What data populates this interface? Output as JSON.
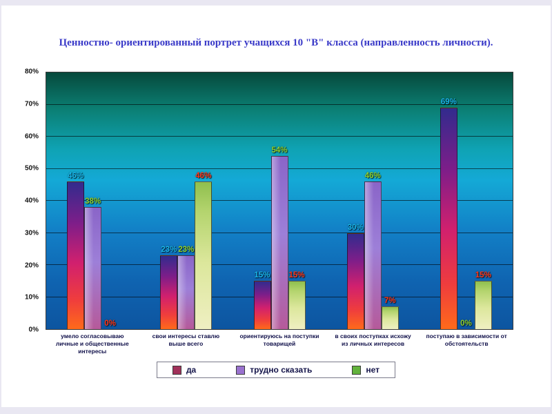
{
  "chart_data": {
    "type": "bar",
    "title": "Ценностно- ориентированный портрет учащихся 10 \"В\" класса (направленность личности).",
    "categories": [
      "умело согласовываю личные и общественные интересы",
      "свои интересы ставлю выше всего",
      "ориентируюсь на поступки товарищей",
      "в своих поступках исхожу из личных интересов",
      "поступаю в зависимости от обстоятельств"
    ],
    "series": [
      {
        "name": "да",
        "values": [
          46,
          23,
          15,
          30,
          69
        ],
        "swatch": "#a1315a",
        "label_color": "#19b5ea"
      },
      {
        "name": "трудно сказать",
        "values": [
          38,
          23,
          54,
          46,
          0
        ],
        "swatch": "#9a72cf",
        "label_color": "#8ed02e"
      },
      {
        "name": "нет",
        "values": [
          0,
          46,
          15,
          7,
          15
        ],
        "swatch": "#62b23c",
        "label_color": "#ff3617"
      }
    ],
    "xlabel": "",
    "ylabel": "",
    "ylim": [
      0,
      80
    ],
    "yticks": [
      "0%",
      "10%",
      "20%",
      "30%",
      "40%",
      "50%",
      "60%",
      "70%",
      "80%"
    ],
    "grid": true,
    "legend_position": "bottom"
  }
}
